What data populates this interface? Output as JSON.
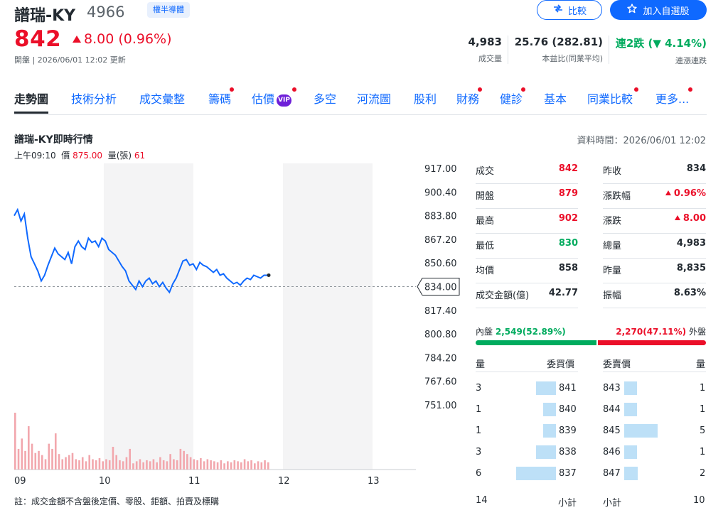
{
  "header": {
    "name": "譜瑞-KY",
    "code": "4966",
    "badge": "權半導體",
    "compare_label": "比較",
    "watch_label": "加入自選股",
    "price": "842",
    "change": "8.00 (0.96%)",
    "status": "開盤 | 2026/06/01 12:02 更新",
    "stats": [
      {
        "value": "4,983",
        "label": "成交量",
        "color": "#232a31"
      },
      {
        "value": "25.76 (282.81)",
        "label": "本益比(同業平均)",
        "color": "#232a31"
      },
      {
        "value": "連2跌 (▼ 4.14%)",
        "label": "連漲連跌",
        "color": "#00ab5e"
      }
    ]
  },
  "tabs": [
    "走勢圖",
    "技術分析",
    "成交彙整",
    "籌碼",
    "估價",
    "多空",
    "河流圖",
    "股利",
    "財務",
    "健診",
    "基本",
    "同業比較",
    "更多..."
  ],
  "section": {
    "title": "譜瑞-KY即時行情",
    "data_time": "資料時間：2026/06/01 12:02",
    "tooltip_time": "上午09:10",
    "tooltip_price_label": "價",
    "tooltip_price": "875.00",
    "tooltip_vol_label": "量(張)",
    "tooltip_vol": "61",
    "note": "註：成交金額不含盤後定價、零股、鉅額、拍賣及標購"
  },
  "chart_data": {
    "type": "line",
    "yticks": [
      "917.00",
      "900.40",
      "883.80",
      "867.20",
      "850.60",
      "834.00",
      "817.40",
      "800.80",
      "784.20",
      "767.60",
      "751.00"
    ],
    "ylim": [
      751,
      917
    ],
    "xticks": [
      "09",
      "10",
      "11",
      "12",
      "13"
    ],
    "reference_price": 834.0,
    "reference_label": "834.00",
    "last_price": 842,
    "series": [
      {
        "values": [
          883.8,
          888,
          880,
          885,
          868,
          855,
          850,
          845,
          838,
          842,
          849,
          855,
          861,
          857,
          855,
          853,
          858,
          850,
          862,
          866,
          862,
          860,
          868,
          865,
          866,
          862,
          868,
          866,
          860,
          858,
          856,
          852,
          848,
          845,
          838,
          835,
          832,
          838,
          834,
          838,
          840,
          836,
          838,
          834,
          837,
          833,
          830,
          836,
          840,
          846,
          852,
          853,
          849,
          850,
          846,
          851,
          849,
          848,
          846,
          844,
          846,
          842,
          843,
          840,
          838,
          836,
          837,
          835,
          838,
          840,
          839,
          842,
          841,
          840,
          842,
          842
        ]
      }
    ],
    "volumes": [
      55,
      20,
      30,
      18,
      42,
      25,
      16,
      18,
      14,
      10,
      25,
      20,
      35,
      15,
      10,
      12,
      14,
      16,
      10,
      9,
      12,
      8,
      14,
      10,
      9,
      11,
      8,
      10,
      9,
      22,
      14,
      9,
      8,
      12,
      20,
      6,
      8,
      10,
      7,
      9,
      8,
      10,
      7,
      12,
      9,
      8,
      15,
      10,
      9,
      20,
      18,
      15,
      12,
      10,
      9,
      11,
      8,
      10,
      9,
      8,
      7,
      9,
      6,
      8,
      7,
      9,
      8,
      7,
      10,
      8,
      9,
      6,
      8,
      7,
      9,
      7
    ]
  },
  "stats": {
    "left": [
      {
        "label": "成交",
        "value": "842",
        "color": "red"
      },
      {
        "label": "開盤",
        "value": "879",
        "color": "red"
      },
      {
        "label": "最高",
        "value": "902",
        "color": "red"
      },
      {
        "label": "最低",
        "value": "830",
        "color": "green"
      },
      {
        "label": "均價",
        "value": "858",
        "color": "dark"
      },
      {
        "label": "成交金額(億)",
        "value": "42.77",
        "color": "dark"
      }
    ],
    "right": [
      {
        "label": "昨收",
        "value": "834",
        "color": "dark"
      },
      {
        "label": "漲跌幅",
        "value": "0.96%",
        "color": "red",
        "arrow": true
      },
      {
        "label": "漲跌",
        "value": "8.00",
        "color": "red",
        "arrow": true
      },
      {
        "label": "總量",
        "value": "4,983",
        "color": "dark"
      },
      {
        "label": "昨量",
        "value": "8,835",
        "color": "dark"
      },
      {
        "label": "振幅",
        "value": "8.63%",
        "color": "dark"
      }
    ]
  },
  "inout": {
    "in_label": "內盤",
    "in_value": "2,549(52.89%)",
    "out_value": "2,270(47.11%)",
    "out_label": "外盤",
    "in_fraction": 0.5289
  },
  "orderbook": {
    "headers": {
      "qty": "量",
      "bid": "委買價",
      "ask": "委賣價",
      "qty2": "量"
    },
    "bids": [
      {
        "qty": "3",
        "price": "841",
        "qty_value": 3
      },
      {
        "qty": "1",
        "price": "840",
        "qty_value": 1
      },
      {
        "qty": "1",
        "price": "839",
        "qty_value": 1
      },
      {
        "qty": "3",
        "price": "838",
        "qty_value": 3
      },
      {
        "qty": "6",
        "price": "837",
        "qty_value": 6
      }
    ],
    "asks": [
      {
        "price": "843",
        "qty": "1",
        "qty_value": 1
      },
      {
        "price": "844",
        "qty": "1",
        "qty_value": 1
      },
      {
        "price": "845",
        "qty": "5",
        "qty_value": 5
      },
      {
        "price": "846",
        "qty": "1",
        "qty_value": 1
      },
      {
        "price": "847",
        "qty": "2",
        "qty_value": 2
      }
    ],
    "bid_total": "14",
    "bid_total_label": "小計",
    "ask_total_label": "小計",
    "ask_total": "10"
  }
}
